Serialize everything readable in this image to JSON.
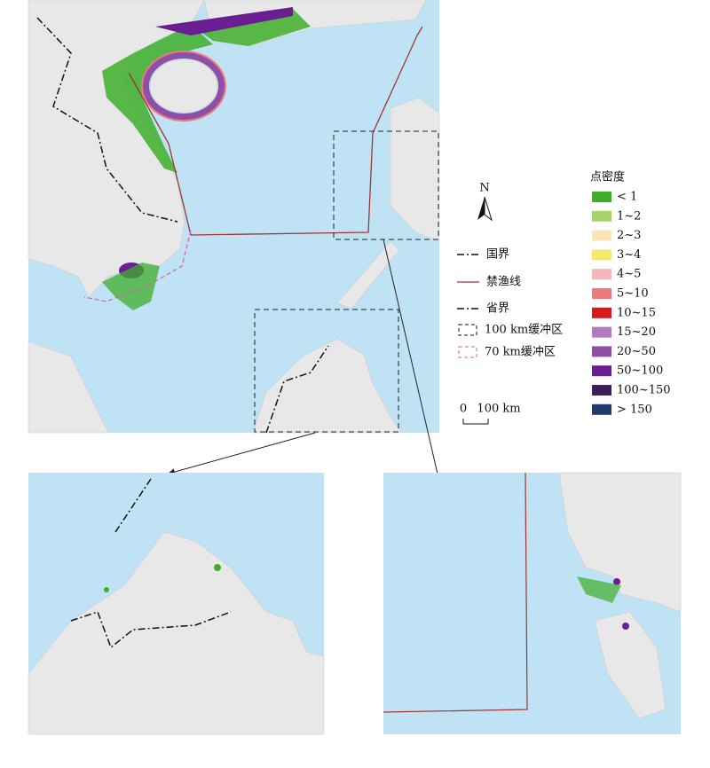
{
  "legend": {
    "title": "点密度",
    "items": [
      {
        "label": "< 1",
        "color": "#3fae2a"
      },
      {
        "label": "1~2",
        "color": "#a6d46a"
      },
      {
        "label": "2~3",
        "color": "#fbe5b6"
      },
      {
        "label": "3~4",
        "color": "#f2e96b"
      },
      {
        "label": "4~5",
        "color": "#f4b6b8"
      },
      {
        "label": "5~10",
        "color": "#ec7a7a"
      },
      {
        "label": "10~15",
        "color": "#d7191c"
      },
      {
        "label": "15~20",
        "color": "#b27bbf"
      },
      {
        "label": "20~50",
        "color": "#8e4fa8"
      },
      {
        "label": "50~100",
        "color": "#6a1e92"
      },
      {
        "label": "100~150",
        "color": "#3b1f5c"
      },
      {
        "label": "> 150",
        "color": "#1f3a6b"
      }
    ]
  },
  "symbols": [
    "国界",
    "禁渔线",
    "省界",
    "100 km缓冲区",
    "70 km缓冲区"
  ],
  "scale": {
    "start": "0",
    "end": "100 km"
  },
  "north": "N"
}
